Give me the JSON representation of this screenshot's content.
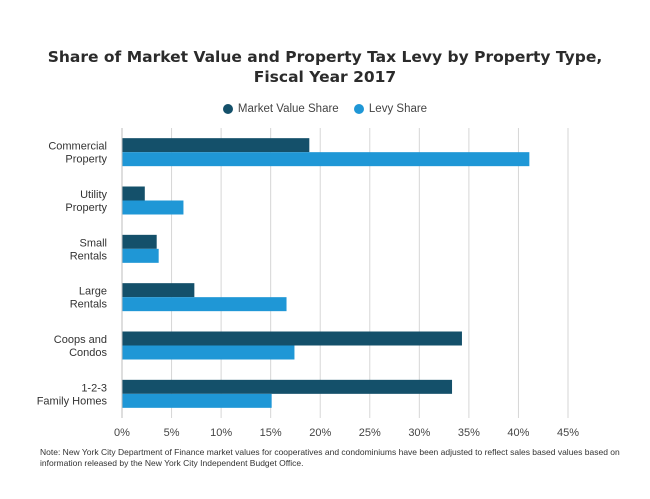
{
  "chart_data": {
    "type": "bar",
    "orientation": "horizontal",
    "title": "Share of Market Value and Property Tax Levy by Property Type,",
    "title_line2": "Fiscal Year 2017",
    "categories": [
      [
        "Commercial",
        "Property"
      ],
      [
        "Utility",
        "Property"
      ],
      [
        "Small",
        "Rentals"
      ],
      [
        "Large",
        "Rentals"
      ],
      [
        "Coops and",
        "Condos"
      ],
      [
        "1-2-3",
        "Family Homes"
      ]
    ],
    "series": [
      {
        "name": "Market Value Share",
        "color": "#14506a",
        "values": [
          18.9,
          2.3,
          3.5,
          7.3,
          34.3,
          33.3
        ]
      },
      {
        "name": "Levy Share",
        "color": "#1f97d6",
        "values": [
          41.1,
          6.2,
          3.7,
          16.6,
          17.4,
          15.1
        ]
      }
    ],
    "xlim": [
      0,
      45
    ],
    "x_ticks": [
      "0%",
      "5%",
      "10%",
      "15%",
      "20%",
      "25%",
      "30%",
      "35%",
      "40%",
      "45%"
    ],
    "grid": "vertical",
    "legend_position": "top-center",
    "note": "Note: New York City Department of Finance market values for cooperatives and condominiums  have been adjusted to reflect sales based values based on information released by the New York City Independent Budget Office."
  }
}
